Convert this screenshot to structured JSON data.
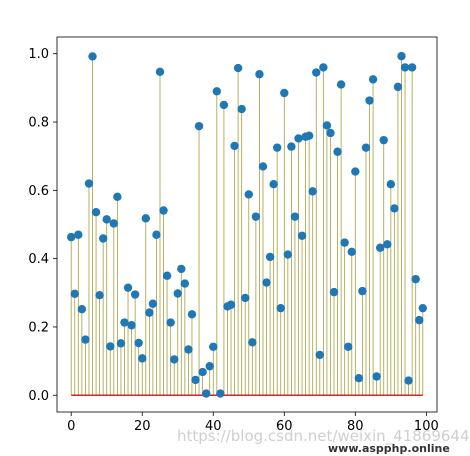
{
  "chart_data": {
    "type": "stem",
    "x": [
      0,
      1,
      2,
      3,
      4,
      5,
      6,
      7,
      8,
      9,
      10,
      11,
      12,
      13,
      14,
      15,
      16,
      17,
      18,
      19,
      20,
      21,
      22,
      23,
      24,
      25,
      26,
      27,
      28,
      29,
      30,
      31,
      32,
      33,
      34,
      35,
      36,
      37,
      38,
      39,
      40,
      41,
      42,
      43,
      44,
      45,
      46,
      47,
      48,
      49,
      50,
      51,
      52,
      53,
      54,
      55,
      56,
      57,
      58,
      59,
      60,
      61,
      62,
      63,
      64,
      65,
      66,
      67,
      68,
      69,
      70,
      71,
      72,
      73,
      74,
      75,
      76,
      77,
      78,
      79,
      80,
      81,
      82,
      83,
      84,
      85,
      86,
      87,
      88,
      89,
      90,
      91,
      92,
      93,
      94,
      95,
      96,
      97,
      98,
      99
    ],
    "y": [
      0.463,
      0.297,
      0.47,
      0.252,
      0.163,
      0.62,
      0.992,
      0.536,
      0.293,
      0.459,
      0.515,
      0.143,
      0.503,
      0.581,
      0.152,
      0.213,
      0.315,
      0.205,
      0.295,
      0.153,
      0.108,
      0.518,
      0.242,
      0.268,
      0.47,
      0.947,
      0.541,
      0.35,
      0.213,
      0.105,
      0.298,
      0.37,
      0.327,
      0.134,
      0.237,
      0.045,
      0.788,
      0.068,
      0.005,
      0.085,
      0.142,
      0.89,
      0.005,
      0.85,
      0.26,
      0.265,
      0.73,
      0.958,
      0.838,
      0.285,
      0.588,
      0.155,
      0.523,
      0.94,
      0.67,
      0.33,
      0.405,
      0.618,
      0.725,
      0.255,
      0.885,
      0.412,
      0.728,
      0.523,
      0.752,
      0.467,
      0.757,
      0.76,
      0.597,
      0.945,
      0.118,
      0.96,
      0.79,
      0.768,
      0.302,
      0.713,
      0.91,
      0.447,
      0.142,
      0.42,
      0.655,
      0.05,
      0.305,
      0.725,
      0.863,
      0.925,
      0.055,
      0.432,
      0.747,
      0.442,
      0.618,
      0.547,
      0.903,
      0.993,
      0.96,
      0.043,
      0.96,
      0.34,
      0.22,
      0.255
    ],
    "xlim": [
      -4,
      103
    ],
    "ylim": [
      -0.049,
      1.049
    ],
    "xticks": [
      0,
      20,
      40,
      60,
      80,
      100
    ],
    "yticks": [
      0.0,
      0.2,
      0.4,
      0.6,
      0.8,
      1.0
    ],
    "xtick_labels": [
      "0",
      "20",
      "40",
      "60",
      "80",
      "100"
    ],
    "ytick_labels": [
      "0.0",
      "0.2",
      "0.4",
      "0.6",
      "0.8",
      "1.0"
    ],
    "grid": false,
    "colors": {
      "stem": "#a59f3c",
      "marker": "#1f77b4",
      "baseline": "#d62728"
    }
  },
  "watermark": {
    "text": "https://blog.csdn.net/weixin_41869644",
    "site": "www.aspphp.online"
  }
}
